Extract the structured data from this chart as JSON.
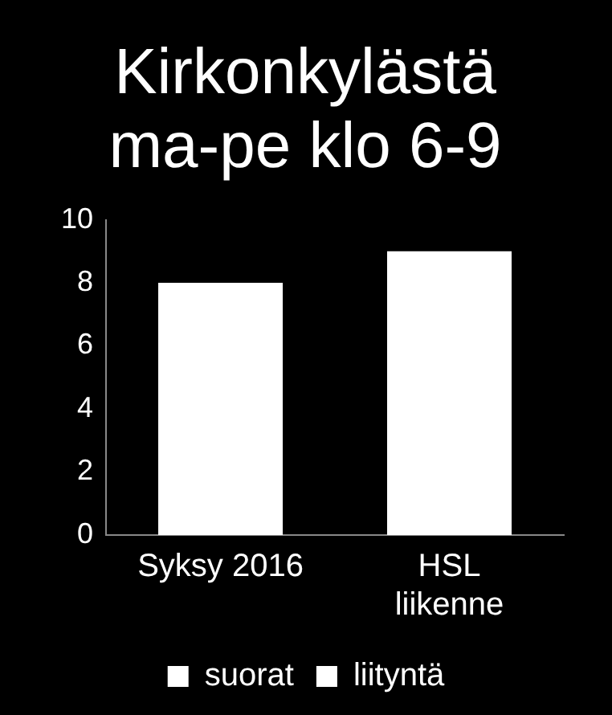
{
  "chart_data": {
    "type": "bar",
    "title": "Kirkonkylästä ma-pe klo 6-9",
    "categories": [
      "Syksy 2016",
      "HSL liikenne"
    ],
    "stacked": true,
    "series": [
      {
        "name": "suorat",
        "color": "#ffffff",
        "values": [
          8,
          9
        ]
      },
      {
        "name": "liityntä",
        "color": "#ffffff",
        "values": [
          0,
          0
        ]
      }
    ],
    "ylim": [
      0,
      10
    ],
    "yticks": [
      0,
      2,
      4,
      6,
      8,
      10
    ],
    "grid": false,
    "legend": "bottom"
  }
}
